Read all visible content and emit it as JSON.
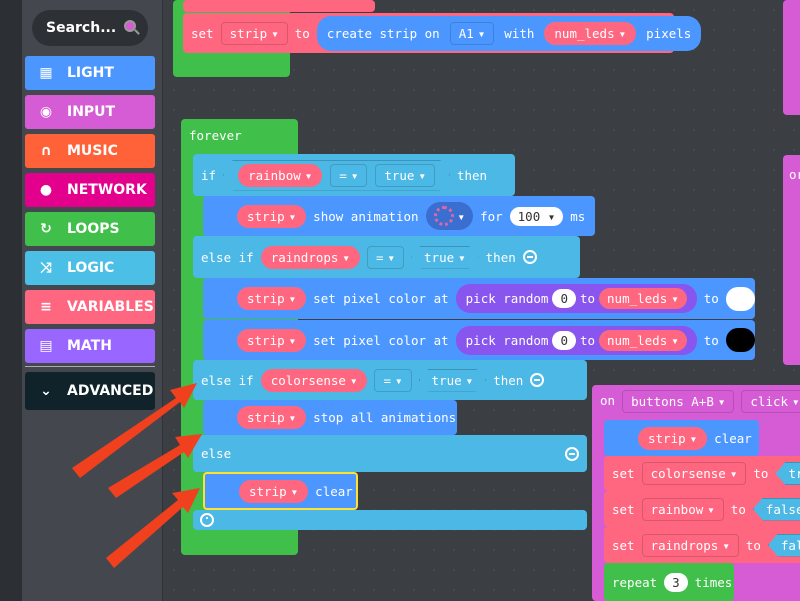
{
  "sidebar": {
    "search_placeholder": "Search...",
    "categories": [
      {
        "label": "LIGHT",
        "icon": "grid-icon",
        "color": "#4c97ff"
      },
      {
        "label": "INPUT",
        "icon": "target-icon",
        "color": "#d65cd6"
      },
      {
        "label": "MUSIC",
        "icon": "headphones-icon",
        "color": "#ff6238"
      },
      {
        "label": "NETWORK",
        "icon": "chat-icon",
        "color": "#e3008c"
      },
      {
        "label": "LOOPS",
        "icon": "refresh-icon",
        "color": "#40bf4a"
      },
      {
        "label": "LOGIC",
        "icon": "shuffle-icon",
        "color": "#4cbfe6"
      },
      {
        "label": "VARIABLES",
        "icon": "list-icon",
        "color": "#ff6680"
      },
      {
        "label": "MATH",
        "icon": "calculator-icon",
        "color": "#9966ff"
      }
    ],
    "advanced": "ADVANCED"
  },
  "blocks": {
    "set": "set",
    "to": "to",
    "strip": "strip",
    "create_strip_on": "create strip on",
    "pin": "A1",
    "with": "with",
    "num_leds": "num_leds",
    "pixels": "pixels",
    "forever": "forever",
    "if": "if",
    "else_if": "else if",
    "else": "else",
    "then": "then",
    "eq": "=",
    "true": "true",
    "false": "false",
    "rainbow": "rainbow",
    "raindrops": "raindrops",
    "colorsense": "colorsense",
    "show_animation": "show animation",
    "for": "for",
    "ms_value": "100",
    "ms": "ms",
    "set_pixel_color_at": "set pixel color at",
    "pick_random": "pick random",
    "zero": "0",
    "stop_all_animations": "stop all animations",
    "clear": "clear",
    "on": "on",
    "buttons": "buttons A+B",
    "click": "click",
    "repeat": "repeat",
    "repeat_count": "3",
    "times": "times",
    "partial_on": "or"
  },
  "colors": {
    "white_swatch": "#ffffff",
    "black_swatch": "#000000",
    "arrow": "#f0401e"
  }
}
